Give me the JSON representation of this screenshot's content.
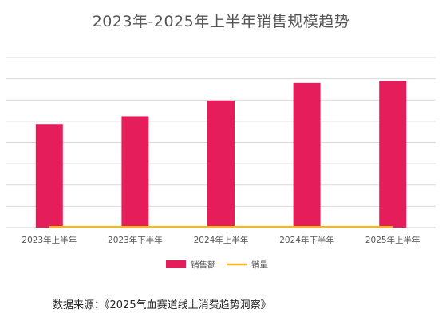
{
  "chart_data": {
    "type": "bar",
    "title": "2023年-2025年上半年销售规模趋势",
    "categories": [
      "2023年上半年",
      "2023年下半年",
      "2024年上半年",
      "2024年下半年",
      "2025年上半年"
    ],
    "series": [
      {
        "name": "销售额",
        "chart": "bar",
        "color": "#e51e5b",
        "values": [
          5.3,
          5.7,
          6.5,
          7.4,
          7.5
        ]
      },
      {
        "name": "销量",
        "chart": "line",
        "color": "#f5b81b",
        "values": [
          0.03,
          0.03,
          0.03,
          0.03,
          0.03
        ]
      }
    ],
    "ylim": [
      0,
      8.7
    ],
    "y_tick_labels_shown": false,
    "grid": true,
    "legend_position": "bottom"
  },
  "source_note": "数据来源：《2025气血赛道线上消费趋势洞察》"
}
